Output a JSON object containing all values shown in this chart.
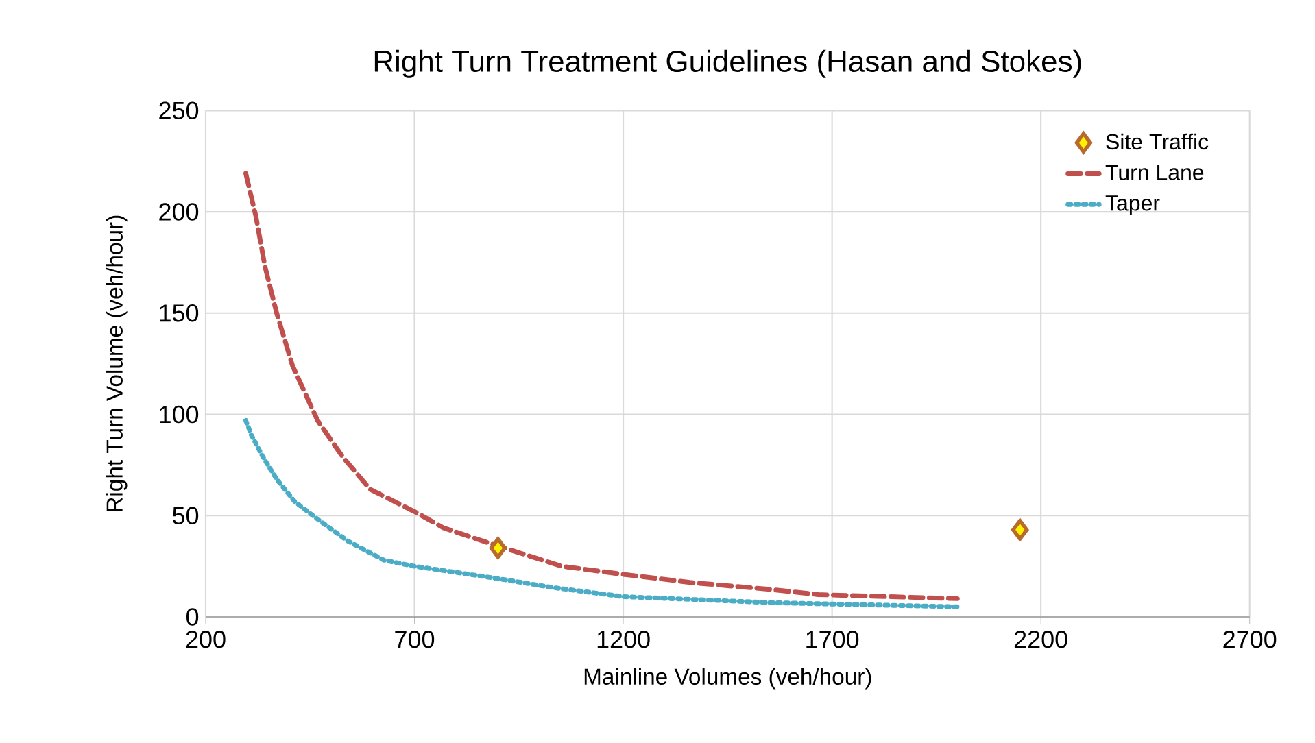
{
  "chart_data": {
    "type": "line",
    "title": "Right Turn Treatment Guidelines (Hasan and Stokes)",
    "xlabel": "Mainline Volumes (veh/hour)",
    "ylabel": "Right Turn Volume (veh/hour)",
    "xlim": [
      200,
      2700
    ],
    "xticks": [
      200,
      700,
      1200,
      1700,
      2200,
      2700
    ],
    "ylim": [
      0,
      250
    ],
    "yticks": [
      0,
      50,
      100,
      150,
      200,
      250
    ],
    "grid": true,
    "legend": "top right",
    "series": [
      {
        "name": "Site Traffic",
        "type": "scatter",
        "marker": "diamond",
        "color": "#b8692c",
        "x": [
          900,
          2150
        ],
        "values": [
          34,
          43
        ]
      },
      {
        "name": "Turn Lane",
        "line_style": "dashed",
        "marker": "none",
        "color": "#c0504d",
        "x": [
          296,
          320,
          342,
          370,
          408,
          468,
          528,
          594,
          700,
          769,
          900,
          1053,
          1200,
          1360,
          1557,
          1667,
          2000
        ],
        "values": [
          219,
          198,
          173,
          150,
          124,
          97,
          79,
          63,
          52,
          44,
          35,
          25,
          21,
          17,
          13.5,
          11,
          9
        ]
      },
      {
        "name": "Taper",
        "line_style": "dotted",
        "marker": "none",
        "color": "#4bacc6",
        "x": [
          296,
          309,
          337,
          370,
          413,
          463,
          540,
          627,
          700,
          897,
          1028,
          1200,
          1557,
          2000
        ],
        "values": [
          97,
          90,
          79,
          68,
          57,
          49,
          37.5,
          28,
          25,
          19,
          14.6,
          10,
          7,
          5
        ]
      }
    ]
  }
}
